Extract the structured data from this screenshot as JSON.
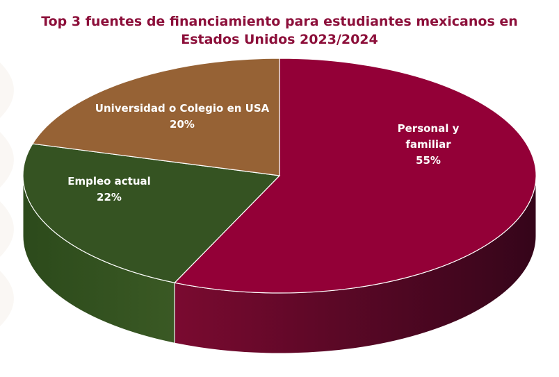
{
  "chart_data": {
    "type": "pie",
    "title": "Top 3 fuentes de financiamiento para estudiantes mexicanos en Estados Unidos 2023/2024",
    "slices": [
      {
        "name": "Personal y familiar",
        "label_lines": [
          "Personal y",
          "familiar"
        ],
        "value": 55,
        "value_label": "55%",
        "color": "#930037",
        "side": "#5a0a22"
      },
      {
        "name": "Empleo actual",
        "label_lines": [
          "Empleo actual"
        ],
        "value": 22,
        "value_label": "22%",
        "color": "#355322",
        "side": "#2a4018"
      },
      {
        "name": "Universidad o Colegio en USA",
        "label_lines": [
          "Universidad o Colegio en USA"
        ],
        "value": 20,
        "value_label": "20%",
        "color": "#966235",
        "side": "#6e4626"
      }
    ],
    "legend": "none",
    "style": "3d"
  }
}
